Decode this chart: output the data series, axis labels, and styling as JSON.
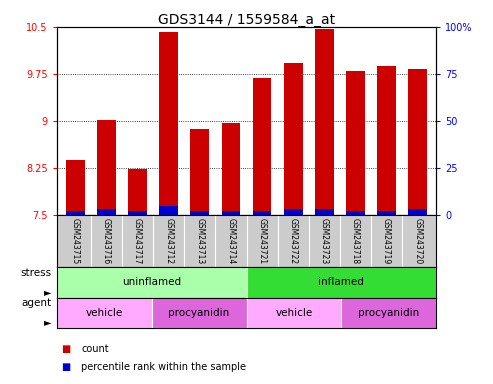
{
  "title": "GDS3144 / 1559584_a_at",
  "samples": [
    "GSM243715",
    "GSM243716",
    "GSM243717",
    "GSM243712",
    "GSM243713",
    "GSM243714",
    "GSM243721",
    "GSM243722",
    "GSM243723",
    "GSM243718",
    "GSM243719",
    "GSM243720"
  ],
  "count_values": [
    8.37,
    9.02,
    8.23,
    10.42,
    8.87,
    8.97,
    9.68,
    9.92,
    10.47,
    9.79,
    9.87,
    9.83
  ],
  "percentile_values": [
    2,
    3,
    2,
    5,
    2,
    2,
    2,
    3,
    3,
    2,
    2,
    3
  ],
  "ylim_left": [
    7.5,
    10.5
  ],
  "ylim_right": [
    0,
    100
  ],
  "yticks_left": [
    7.5,
    8.25,
    9.0,
    9.75,
    10.5
  ],
  "ytick_labels_left": [
    "7.5",
    "8.25",
    "9",
    "9.75",
    "10.5"
  ],
  "yticks_right": [
    0,
    25,
    50,
    75,
    100
  ],
  "ytick_labels_right": [
    "0",
    "25",
    "50",
    "75",
    "100%"
  ],
  "bar_color": "#cc0000",
  "percentile_color": "#0000cc",
  "bar_width": 0.6,
  "stress_groups": [
    {
      "label": "uninflamed",
      "start": 0,
      "end": 6,
      "color": "#aaffaa"
    },
    {
      "label": "inflamed",
      "start": 6,
      "end": 12,
      "color": "#33dd33"
    }
  ],
  "agent_groups": [
    {
      "label": "vehicle",
      "start": 0,
      "end": 3,
      "color": "#ffaaff"
    },
    {
      "label": "procyanidin",
      "start": 3,
      "end": 6,
      "color": "#dd66dd"
    },
    {
      "label": "vehicle",
      "start": 6,
      "end": 9,
      "color": "#ffaaff"
    },
    {
      "label": "procyanidin",
      "start": 9,
      "end": 12,
      "color": "#dd66dd"
    }
  ],
  "stress_label": "stress",
  "agent_label": "agent",
  "legend_count_label": "count",
  "legend_percentile_label": "percentile rank within the sample",
  "background_color": "#ffffff",
  "plot_bg_color": "#ffffff",
  "grid_color": "#000000",
  "sample_box_color": "#cccccc",
  "title_fontsize": 10,
  "tick_fontsize": 7,
  "label_fontsize": 7.5
}
